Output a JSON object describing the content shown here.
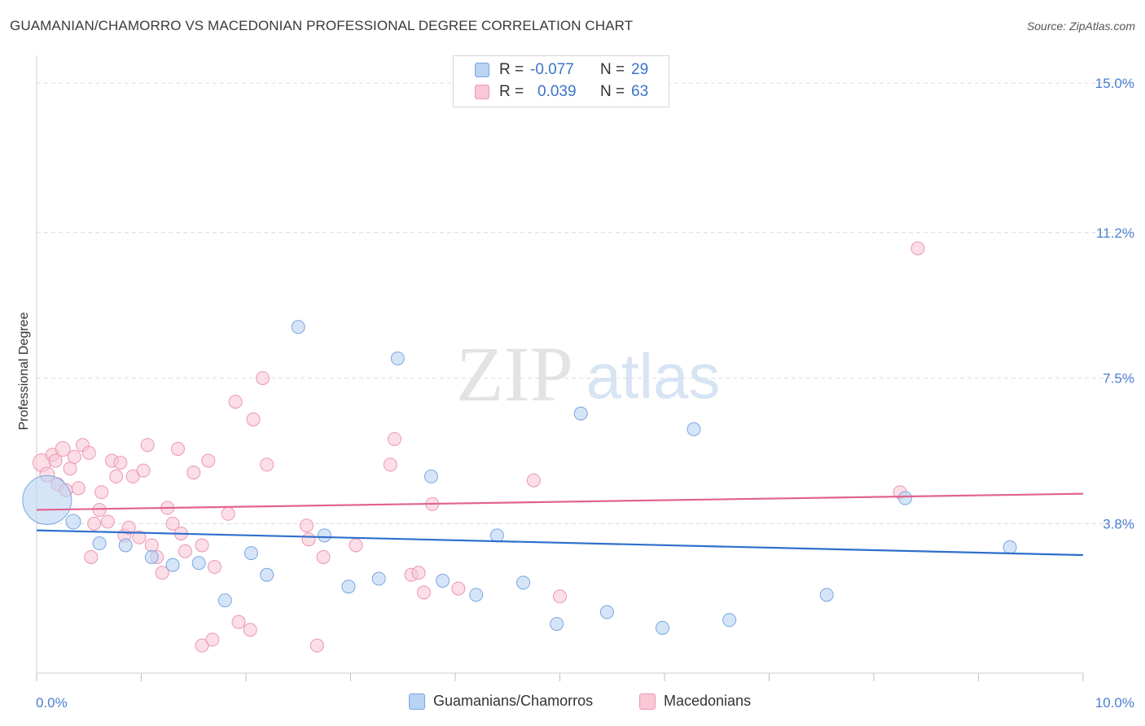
{
  "title": "GUAMANIAN/CHAMORRO VS MACEDONIAN PROFESSIONAL DEGREE CORRELATION CHART",
  "source": "Source: ZipAtlas.com",
  "watermark": {
    "zip": "ZIP",
    "atlas": "atlas"
  },
  "colors": {
    "blue_fill": "#b9d3f3",
    "blue_stroke": "#7aa6e0",
    "blue_line": "#2e6fcc",
    "pink_fill": "#f8c8d6",
    "pink_stroke": "#ec97b2",
    "pink_line": "#e2638f",
    "tick_text": "#4a7fcf",
    "grid": "#dcdcdc"
  },
  "legend": {
    "rows": [
      {
        "r_label": "R =",
        "r_value": "-0.077",
        "n_label": "N =",
        "n_value": "29"
      },
      {
        "r_label": "R =",
        "r_value": "0.039",
        "n_label": "N =",
        "n_value": "63"
      }
    ]
  },
  "bottom_legend": [
    "Guamanians/Chamorros",
    "Macedonians"
  ],
  "chart_data": {
    "type": "scatter",
    "ylabel": "Professional Degree",
    "xlim": [
      0,
      10
    ],
    "ylim": [
      0,
      15.5
    ],
    "x_tick_labels": [
      "0.0%",
      "10.0%"
    ],
    "y_ticks": [
      3.8,
      7.5,
      11.2,
      15.0
    ],
    "y_tick_labels": [
      "3.8%",
      "7.5%",
      "11.2%",
      "15.0%"
    ],
    "grid": true,
    "series": [
      {
        "name": "Guamanians/Chamorros",
        "trend": {
          "x": [
            0.0,
            10.0
          ],
          "y": [
            3.63,
            3.0
          ]
        },
        "points": [
          [
            0.1,
            4.4,
            30
          ],
          [
            0.35,
            3.85,
            9
          ],
          [
            0.6,
            3.3,
            8
          ],
          [
            0.85,
            3.25,
            8
          ],
          [
            1.1,
            2.95,
            8
          ],
          [
            1.3,
            2.75,
            8
          ],
          [
            1.55,
            2.8,
            8
          ],
          [
            1.8,
            1.85,
            8
          ],
          [
            2.05,
            3.05,
            8
          ],
          [
            2.2,
            2.5,
            8
          ],
          [
            2.5,
            8.8,
            8
          ],
          [
            2.75,
            3.5,
            8
          ],
          [
            2.98,
            2.2,
            8
          ],
          [
            3.27,
            2.4,
            8
          ],
          [
            3.45,
            8.0,
            8
          ],
          [
            3.77,
            5.0,
            8
          ],
          [
            3.88,
            2.35,
            8
          ],
          [
            4.2,
            1.99,
            8
          ],
          [
            4.4,
            3.5,
            8
          ],
          [
            4.65,
            2.3,
            8
          ],
          [
            4.97,
            1.25,
            8
          ],
          [
            5.2,
            6.6,
            8
          ],
          [
            5.45,
            1.55,
            8
          ],
          [
            5.98,
            1.15,
            8
          ],
          [
            6.28,
            6.2,
            8
          ],
          [
            6.62,
            1.35,
            8
          ],
          [
            7.55,
            1.99,
            8
          ],
          [
            8.3,
            4.45,
            8
          ],
          [
            9.3,
            3.2,
            8
          ]
        ]
      },
      {
        "name": "Macedonians",
        "trend": {
          "x": [
            0.0,
            10.0
          ],
          "y": [
            4.15,
            4.56
          ]
        },
        "points": [
          [
            0.05,
            5.35,
            11
          ],
          [
            0.1,
            5.05,
            9
          ],
          [
            0.15,
            5.55,
            8
          ],
          [
            0.18,
            5.4,
            8
          ],
          [
            0.2,
            4.8,
            8
          ],
          [
            0.25,
            5.7,
            9
          ],
          [
            0.28,
            4.65,
            8
          ],
          [
            0.32,
            5.2,
            8
          ],
          [
            0.36,
            5.5,
            8
          ],
          [
            0.4,
            4.7,
            8
          ],
          [
            0.44,
            5.8,
            8
          ],
          [
            0.5,
            5.6,
            8
          ],
          [
            0.52,
            2.95,
            8
          ],
          [
            0.55,
            3.8,
            8
          ],
          [
            0.6,
            4.15,
            8
          ],
          [
            0.62,
            4.6,
            8
          ],
          [
            0.68,
            3.85,
            8
          ],
          [
            0.72,
            5.4,
            8
          ],
          [
            0.76,
            5.0,
            8
          ],
          [
            0.8,
            5.35,
            8
          ],
          [
            0.84,
            3.5,
            8
          ],
          [
            0.88,
            3.7,
            8
          ],
          [
            0.92,
            5.0,
            8
          ],
          [
            0.98,
            3.45,
            8
          ],
          [
            1.02,
            5.15,
            8
          ],
          [
            1.06,
            5.8,
            8
          ],
          [
            1.1,
            3.25,
            8
          ],
          [
            1.15,
            2.95,
            8
          ],
          [
            1.2,
            2.55,
            8
          ],
          [
            1.25,
            4.2,
            8
          ],
          [
            1.3,
            3.8,
            8
          ],
          [
            1.35,
            5.7,
            8
          ],
          [
            1.38,
            3.55,
            8
          ],
          [
            1.42,
            3.1,
            8
          ],
          [
            1.5,
            5.1,
            8
          ],
          [
            1.58,
            3.25,
            8
          ],
          [
            1.64,
            5.4,
            8
          ],
          [
            1.7,
            2.7,
            8
          ],
          [
            1.83,
            4.05,
            8
          ],
          [
            1.9,
            6.9,
            8
          ],
          [
            1.93,
            1.3,
            8
          ],
          [
            2.07,
            6.45,
            8
          ],
          [
            2.16,
            7.5,
            8
          ],
          [
            2.2,
            5.3,
            8
          ],
          [
            2.04,
            1.1,
            8
          ],
          [
            2.6,
            3.4,
            8
          ],
          [
            2.58,
            3.75,
            8
          ],
          [
            2.74,
            2.95,
            8
          ],
          [
            3.05,
            3.25,
            8
          ],
          [
            3.38,
            5.3,
            8
          ],
          [
            3.42,
            5.95,
            8
          ],
          [
            3.58,
            2.5,
            8
          ],
          [
            3.65,
            2.55,
            8
          ],
          [
            3.7,
            2.05,
            8
          ],
          [
            3.78,
            4.3,
            8
          ],
          [
            4.03,
            2.15,
            8
          ],
          [
            4.75,
            4.9,
            8
          ],
          [
            5.0,
            1.95,
            8
          ],
          [
            1.58,
            0.7,
            8
          ],
          [
            1.68,
            0.85,
            8
          ],
          [
            2.68,
            0.7,
            8
          ],
          [
            8.25,
            4.6,
            8
          ],
          [
            8.42,
            10.8,
            8
          ]
        ]
      }
    ]
  }
}
